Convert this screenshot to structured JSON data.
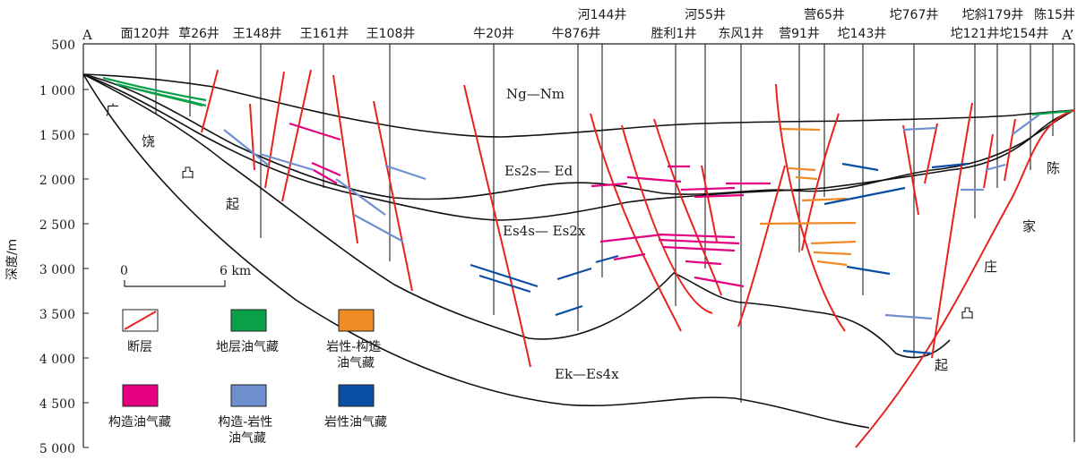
{
  "section": {
    "start_label": "A",
    "end_label": "A’"
  },
  "wells_top_row": [
    "河144井",
    "河55井",
    "营65井",
    "坨767井",
    "坨斜179井",
    "陈15井"
  ],
  "wells_bottom_row": [
    "面120井",
    "草26井",
    "王148井",
    "王161井",
    "王108井",
    "牛20井",
    "牛876井",
    "胜利1井",
    "东风1井",
    "营91井",
    "坨143井",
    "坨121井",
    "坨154井"
  ],
  "depth_axis": {
    "label": "深度/m",
    "ticks": [
      "500",
      "1 000",
      "1 500",
      "2 000",
      "2 500",
      "3 000",
      "3 500",
      "4 000",
      "4 500",
      "5 000"
    ]
  },
  "scale_bar": {
    "start": "0",
    "end": "6 km"
  },
  "formations": {
    "ng_nm": "Ng—Nm",
    "es2_ed": "Es2s— Ed",
    "es4_es2": "Es4s— Es2x",
    "ek_es4": "Ek—Es4x"
  },
  "uplifts": {
    "left": [
      "广",
      "饶",
      "凸",
      "起"
    ],
    "right": [
      "陈",
      "家",
      "庄",
      "凸",
      "起"
    ]
  },
  "legend": [
    {
      "label": "断层",
      "color": "#e8231f",
      "type": "fault"
    },
    {
      "label": "地层油气藏",
      "color": "#0aa04a",
      "type": "box"
    },
    {
      "label": "岩性-构造油气藏",
      "color": "#f08a24",
      "type": "box"
    },
    {
      "label": "构造油气藏",
      "color": "#e5007f",
      "type": "box"
    },
    {
      "label": "构造-岩性油气藏",
      "color": "#6f8fcf",
      "type": "box"
    },
    {
      "label": "岩性油气藏",
      "color": "#0a4fa3",
      "type": "box"
    }
  ],
  "colors": {
    "fault": "#e8231f",
    "stratigraphic": "#0aa04a",
    "lithologic_structural": "#f08a24",
    "structural": "#e5007f",
    "structural_lithologic": "#6f8fcf",
    "lithologic": "#0a4fa3"
  }
}
